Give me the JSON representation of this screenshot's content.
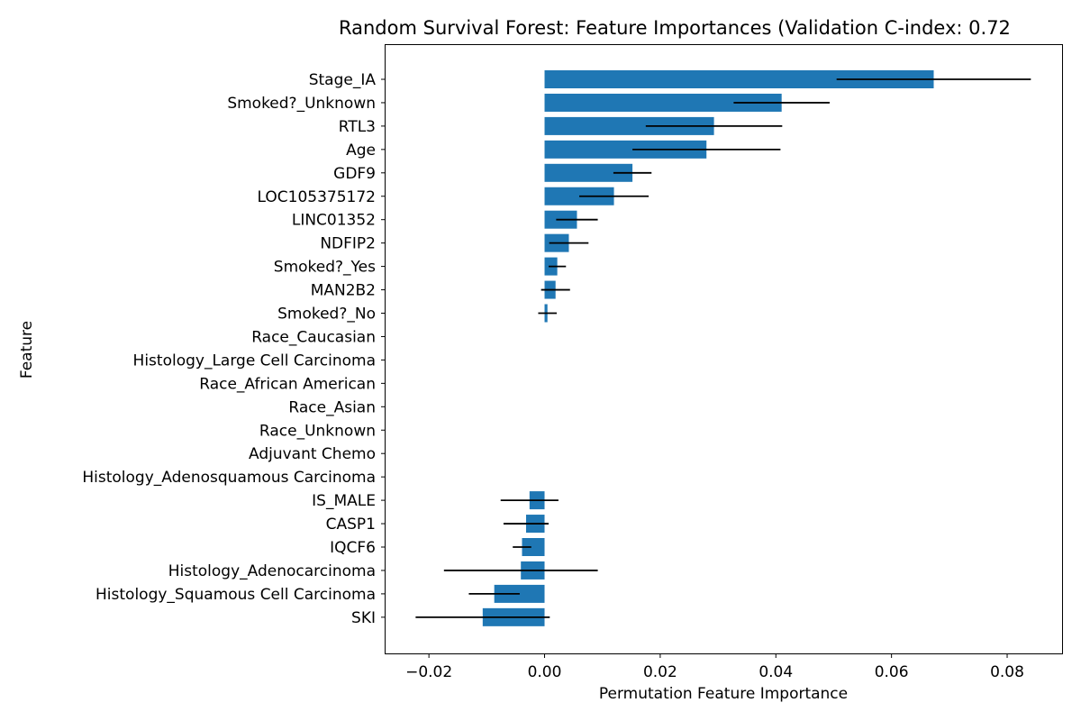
{
  "chart_data": {
    "type": "bar",
    "orientation": "horizontal",
    "title": "Random Survival Forest: Feature Importances (Validation C-index: 0.72",
    "xlabel": "Permutation Feature Importance",
    "ylabel": "Feature",
    "xlim": [
      -0.0275,
      0.0895
    ],
    "xticks": [
      -0.02,
      0.0,
      0.02,
      0.04,
      0.06,
      0.08
    ],
    "xtick_labels": [
      "−0.02",
      "0.00",
      "0.02",
      "0.04",
      "0.06",
      "0.08"
    ],
    "bar_color": "#1f77b4",
    "error_color": "#000000",
    "grid": false,
    "categories": [
      "Stage_IA",
      "Smoked?_Unknown",
      "RTL3",
      "Age",
      "GDF9",
      "LOC105375172",
      "LINC01352",
      "NDFIP2",
      "Smoked?_Yes",
      "MAN2B2",
      "Smoked?_No",
      "Race_Caucasian",
      "Histology_Large Cell Carcinoma",
      "Race_African American",
      "Race_Asian",
      "Race_Unknown",
      "Adjuvant Chemo",
      "Histology_Adenosquamous Carcinoma",
      "IS_MALE",
      "CASP1",
      "IQCF6",
      "Histology_Adenocarcinoma",
      "Histology_Squamous Cell Carcinoma",
      "SKI"
    ],
    "values": [
      0.0673,
      0.041,
      0.0293,
      0.028,
      0.0152,
      0.012,
      0.0056,
      0.0042,
      0.0022,
      0.0019,
      0.0005,
      0.0,
      0.0,
      0.0,
      0.0,
      0.0,
      0.0,
      0.0,
      -0.0026,
      -0.0032,
      -0.0039,
      -0.0041,
      -0.0087,
      -0.0107
    ],
    "errors": [
      0.0168,
      0.0083,
      0.0118,
      0.0128,
      0.0033,
      0.006,
      0.0036,
      0.0034,
      0.0015,
      0.0025,
      0.0016,
      0.0,
      0.0,
      0.0,
      0.0,
      0.0,
      0.0,
      0.0,
      0.005,
      0.0039,
      0.0016,
      0.0133,
      0.0044,
      0.0116
    ]
  }
}
